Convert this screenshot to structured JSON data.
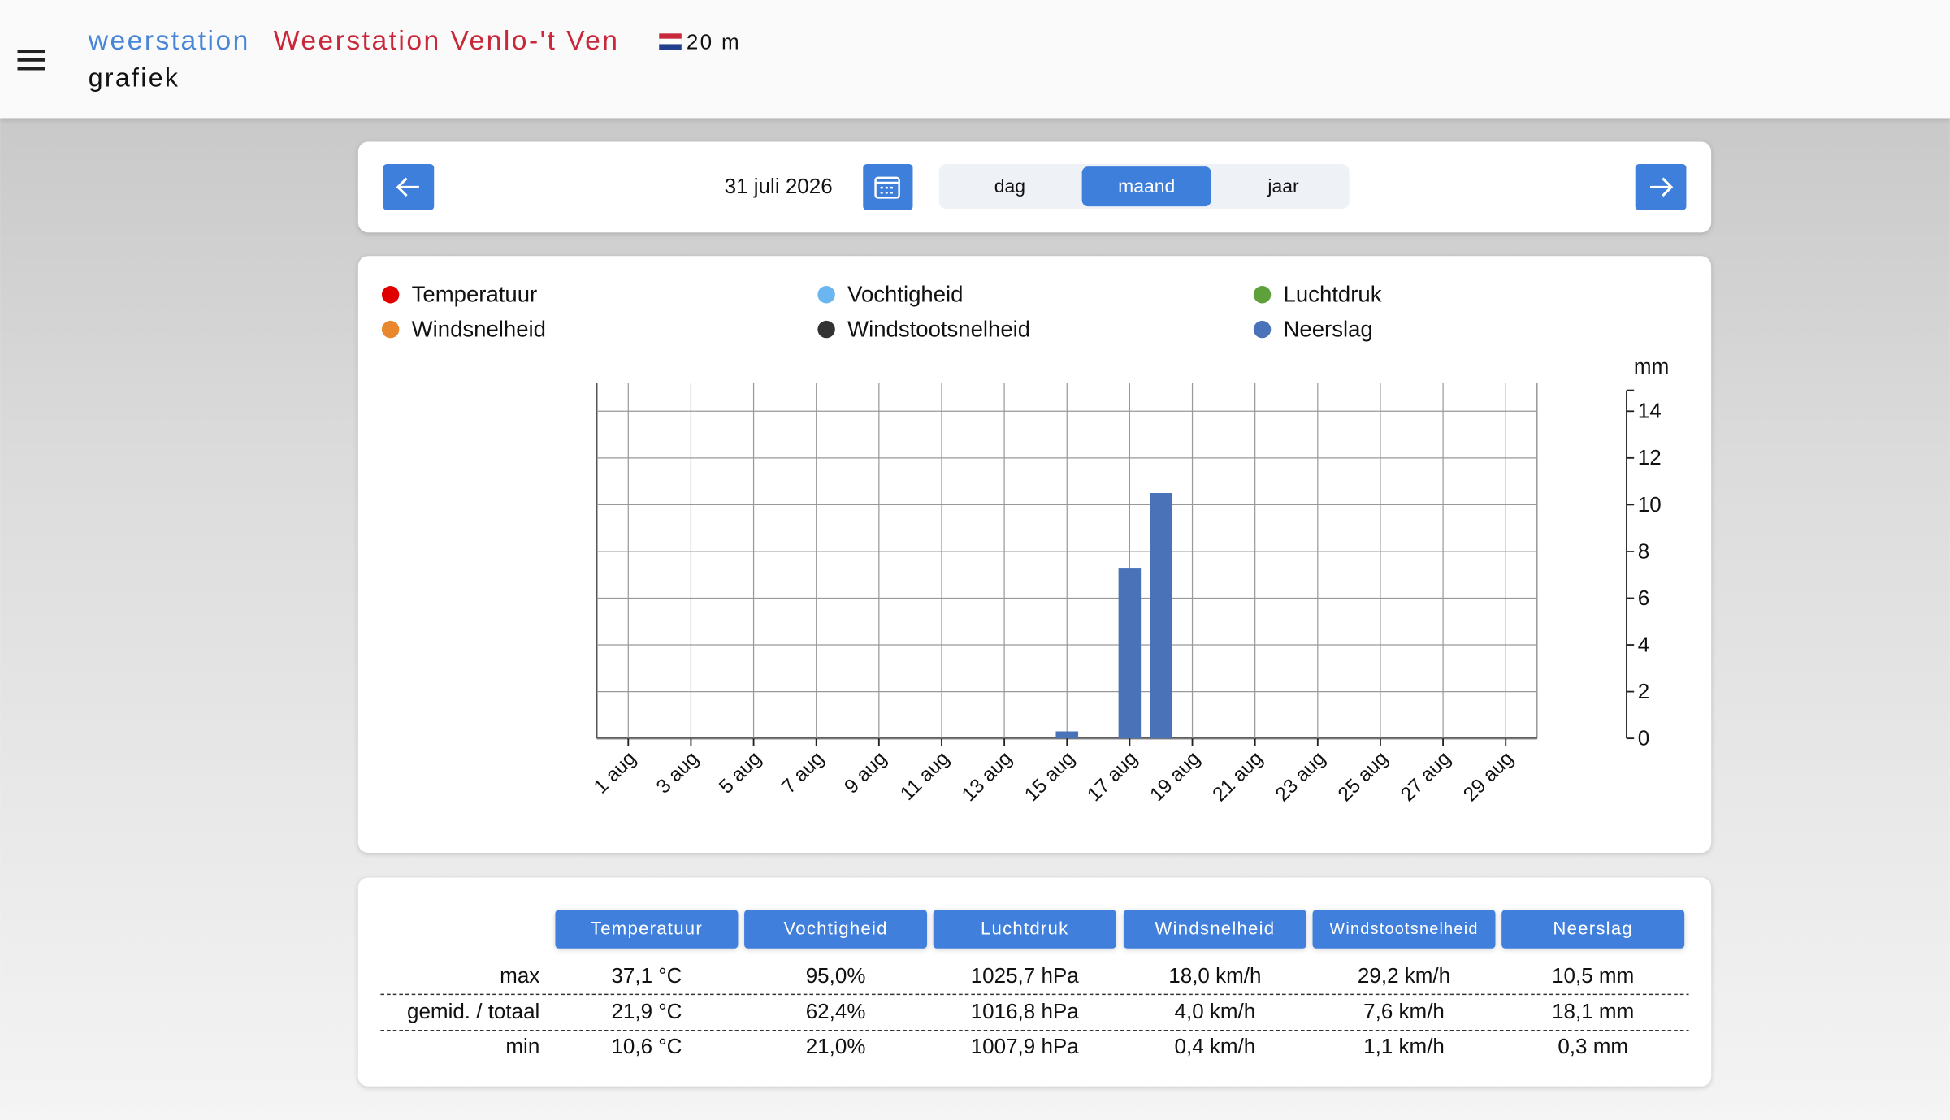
{
  "header": {
    "prefix": "weerstation",
    "station": "Weerstation Venlo-'t Ven",
    "elevation": "20 m",
    "page": "grafiek"
  },
  "controls": {
    "date": "31 juli 2026",
    "periods": [
      "dag",
      "maand",
      "jaar"
    ],
    "active_period": 1
  },
  "chart_data": {
    "type": "bar",
    "y_label": "mm",
    "categories": [
      "1 aug",
      null,
      "3 aug",
      null,
      "5 aug",
      null,
      "7 aug",
      null,
      "9 aug",
      null,
      "11 aug",
      null,
      "13 aug",
      null,
      "15 aug",
      null,
      "17 aug",
      null,
      "19 aug",
      null,
      "21 aug",
      null,
      "23 aug",
      null,
      "25 aug",
      null,
      "27 aug",
      null,
      "29 aug"
    ],
    "series": [
      {
        "name": "Temperatuur",
        "color": "#e00000",
        "values": [
          null,
          null,
          null,
          null,
          null,
          null,
          null,
          null,
          null,
          null,
          null,
          null,
          null,
          null,
          null,
          null,
          null,
          null,
          null,
          null,
          null,
          null,
          null,
          null,
          null,
          null,
          null,
          null,
          null
        ]
      },
      {
        "name": "Vochtigheid",
        "color": "#6ab6f0",
        "values": [
          null,
          null,
          null,
          null,
          null,
          null,
          null,
          null,
          null,
          null,
          null,
          null,
          null,
          null,
          null,
          null,
          null,
          null,
          null,
          null,
          null,
          null,
          null,
          null,
          null,
          null,
          null,
          null,
          null
        ]
      },
      {
        "name": "Luchtdruk",
        "color": "#5ea13a",
        "values": [
          null,
          null,
          null,
          null,
          null,
          null,
          null,
          null,
          null,
          null,
          null,
          null,
          null,
          null,
          null,
          null,
          null,
          null,
          null,
          null,
          null,
          null,
          null,
          null,
          null,
          null,
          null,
          null,
          null
        ]
      },
      {
        "name": "Windsnelheid",
        "color": "#e8872b",
        "values": [
          null,
          null,
          null,
          null,
          null,
          null,
          null,
          null,
          null,
          null,
          null,
          null,
          null,
          null,
          null,
          null,
          null,
          null,
          null,
          null,
          null,
          null,
          null,
          null,
          null,
          null,
          null,
          null,
          null
        ]
      },
      {
        "name": "Windstootsnelheid",
        "color": "#333333",
        "values": [
          null,
          null,
          null,
          null,
          null,
          null,
          null,
          null,
          null,
          null,
          null,
          null,
          null,
          null,
          null,
          null,
          null,
          null,
          null,
          null,
          null,
          null,
          null,
          null,
          null,
          null,
          null,
          null,
          null
        ]
      },
      {
        "name": "Neerslag",
        "color": "#4a72b8",
        "values": [
          0,
          0,
          0,
          0,
          0,
          0,
          0,
          0,
          0,
          0,
          0,
          0,
          0,
          0,
          0.3,
          0,
          7.3,
          10.5,
          0,
          0,
          0,
          0,
          0,
          0,
          0,
          0,
          0,
          0,
          0
        ]
      }
    ],
    "ylim": [
      0,
      15
    ],
    "yticks": [
      0,
      2,
      4,
      6,
      8,
      10,
      12,
      14
    ],
    "grid": true
  },
  "table": {
    "columns": [
      "Temperatuur",
      "Vochtigheid",
      "Luchtdruk",
      "Windsnelheid",
      "Windstootsnelheid",
      "Neerslag"
    ],
    "rows": [
      [
        "max",
        "37,1 °C",
        "95,0%",
        "1025,7 hPa",
        "18,0 km/h",
        "29,2 km/h",
        "10,5 mm"
      ],
      [
        "gemid. / totaal",
        "21,9 °C",
        "62,4%",
        "1016,8 hPa",
        "4,0 km/h",
        "7,6 km/h",
        "18,1 mm"
      ],
      [
        "min",
        "10,6 °C",
        "21,0%",
        "1007,9 hPa",
        "0,4 km/h",
        "1,1 km/h",
        "0,3 mm"
      ]
    ]
  }
}
